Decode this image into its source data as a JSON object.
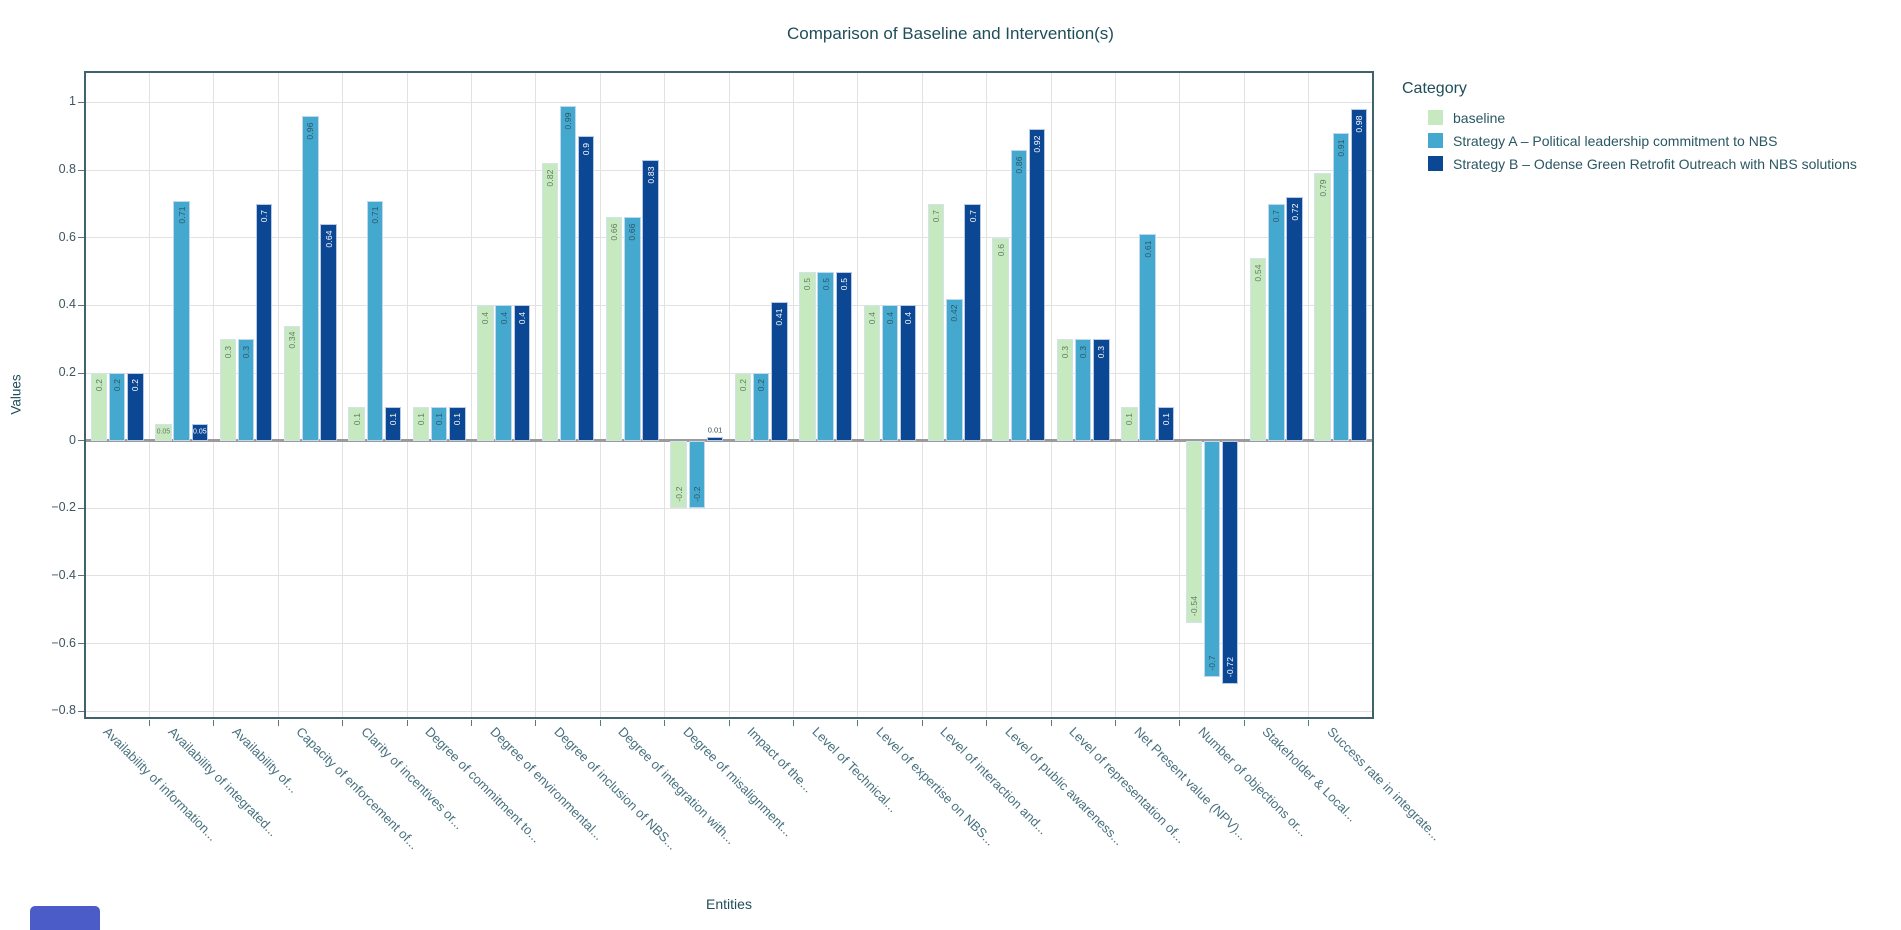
{
  "title": "Comparison of Baseline and Intervention(s)",
  "axes": {
    "x_title": "Entities",
    "y_title": "Values"
  },
  "legend": {
    "title": "Category"
  },
  "partial_element": {
    "color": "#4b5bc7"
  },
  "style_colors": {
    "plot_border": "#3f626d",
    "grid": "#e2e2e2",
    "zero_line": "#9b9b9b",
    "title_text": "#1f4e5a",
    "x_tick_text": "#47707f",
    "y_tick_text": "#3e5560",
    "legend_text": "#2a5763"
  },
  "chart_data": {
    "type": "bar",
    "title": "Comparison of Baseline and Intervention(s)",
    "xlabel": "Entities",
    "ylabel": "Values",
    "ylim": [
      -0.82,
      1.09
    ],
    "yticks": [
      1,
      0.8,
      0.6,
      0.4,
      0.2,
      0,
      -0.2,
      -0.4,
      -0.6,
      -0.8
    ],
    "grid": true,
    "legend_title": "Category",
    "legend_position": "right-top",
    "categories": [
      "Availability of information...",
      "Availability of integrated...",
      "Availability of...",
      "Capacity of enforcement of...",
      "Clarity of incentives or...",
      "Degree of commitment to...",
      "Degree of environmental...",
      "Degree of inclusion of NBS...",
      "Degree of integration with...",
      "Degree of misalignment...",
      "Impact of the...",
      "Level of Technical...",
      "Level of expertise on NBS...",
      "Level of interaction and...",
      "Level of public awareness...",
      "Level of representation of...",
      "Net Present value (NPV)...",
      "Number of objections or...",
      "Stakeholder & Local...",
      "Success rate in integrate..."
    ],
    "series": [
      {
        "name": "baseline",
        "color": "#c7e9c0",
        "label_color": "#5e7a62",
        "values": [
          0.2,
          0.05,
          0.3,
          0.34,
          0.1,
          0.1,
          0.4,
          0.82,
          0.66,
          -0.2,
          0.2,
          0.5,
          0.4,
          0.7,
          0.6,
          0.3,
          0.1,
          -0.54,
          0.54,
          0.79
        ]
      },
      {
        "name": "Strategy A –  Political leadership commitment to NBS",
        "color": "#45a8ce",
        "label_color": "#2c5668",
        "values": [
          0.2,
          0.71,
          0.3,
          0.96,
          0.71,
          0.1,
          0.4,
          0.99,
          0.66,
          -0.2,
          0.2,
          0.5,
          0.4,
          0.42,
          0.86,
          0.3,
          0.61,
          -0.7,
          0.7,
          0.91
        ]
      },
      {
        "name": "Strategy B –  Odense Green Retrofit Outreach with NBS solutions",
        "color": "#0c4794",
        "label_color": "#ffffff",
        "values": [
          0.2,
          0.05,
          0.7,
          0.64,
          0.1,
          0.1,
          0.4,
          0.9,
          0.83,
          0.01,
          0.41,
          0.5,
          0.4,
          0.7,
          0.92,
          0.3,
          0.1,
          -0.72,
          0.72,
          0.98
        ]
      }
    ]
  }
}
